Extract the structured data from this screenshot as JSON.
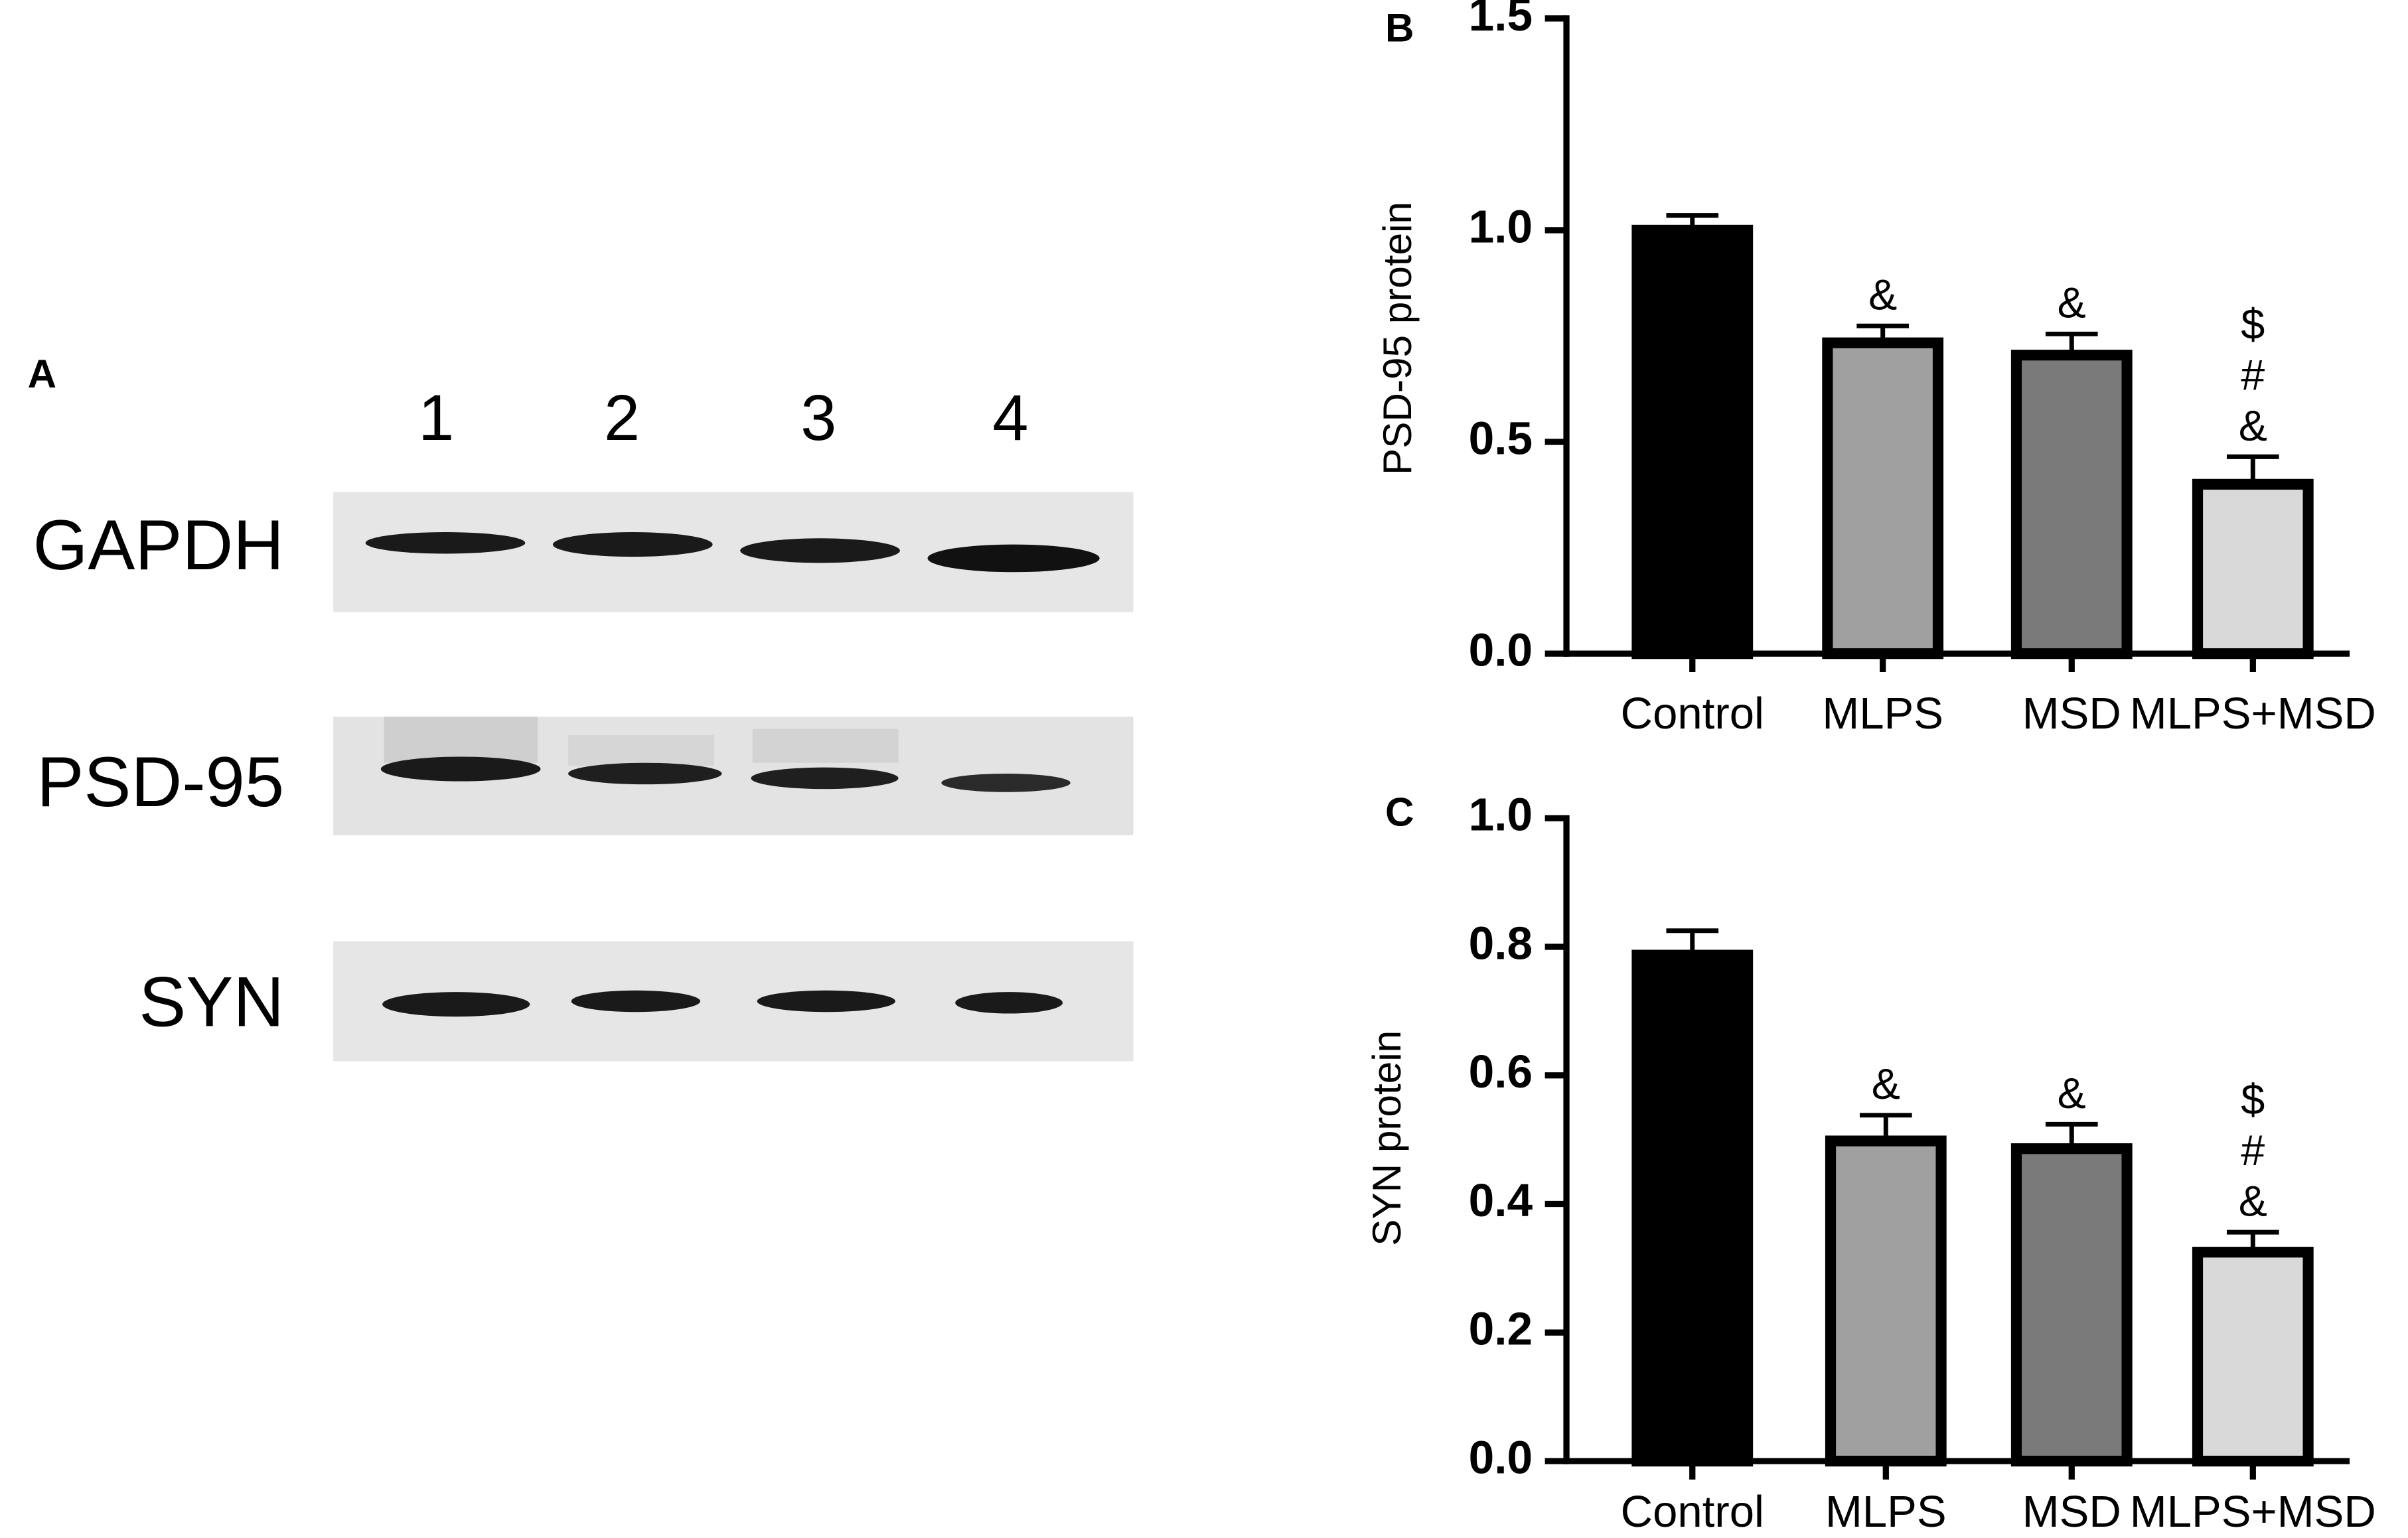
{
  "blot": {
    "panel_label": "A",
    "lanes": [
      "1",
      "2",
      "3",
      "4"
    ],
    "proteins": [
      "GAPDH",
      "PSD-95",
      "SYN"
    ]
  },
  "chart_data": [
    {
      "type": "bar",
      "panel_label": "B",
      "y_label": "PSD-95 protein",
      "categories": [
        "Control",
        "MLPS",
        "MSD",
        "MLPS+MSD"
      ],
      "values": [
        1.0,
        0.734,
        0.705,
        0.4
      ],
      "errors": [
        0.035,
        0.04,
        0.05,
        0.065
      ],
      "colors": [
        "#000000",
        "#a0a0a0",
        "#7a7a7a",
        "#d9d9d9"
      ],
      "annotations": [
        null,
        [
          "&"
        ],
        [
          "&"
        ],
        [
          "$",
          "#",
          "&"
        ]
      ],
      "ylim": [
        0,
        1.5
      ],
      "yticks": [
        {
          "value": 0,
          "label": "0.0"
        },
        0.5,
        {
          "value": 1,
          "label": "1.0"
        },
        1.5
      ]
    },
    {
      "type": "bar",
      "panel_label": "C",
      "y_label": "SYN protein",
      "categories": [
        "Control",
        "MLPS",
        "MSD",
        "MLPS+MSD"
      ],
      "values": [
        0.787,
        0.498,
        0.486,
        0.325
      ],
      "errors": [
        0.038,
        0.04,
        0.038,
        0.031
      ],
      "colors": [
        "#000000",
        "#a0a0a0",
        "#7a7a7a",
        "#d9d9d9"
      ],
      "annotations": [
        null,
        [
          "&"
        ],
        [
          "&"
        ],
        [
          "$",
          "#",
          "&"
        ]
      ],
      "ylim": [
        0,
        1
      ],
      "yticks": [
        {
          "value": 0,
          "label": "0.0"
        },
        0.2,
        0.4,
        0.6,
        0.8,
        {
          "value": 1,
          "label": "1.0"
        }
      ]
    }
  ]
}
